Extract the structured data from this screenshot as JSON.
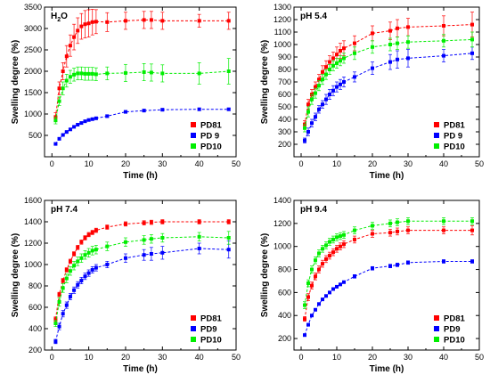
{
  "chart_data": [
    {
      "type": "scatter",
      "panel": "top-left",
      "title": "H2O",
      "title_main": "H",
      "title_sub": "2",
      "title_end": "O",
      "xlabel": "Time (h)",
      "ylabel": "Swelling degree (%)",
      "xlim": [
        -2,
        50
      ],
      "ylim": [
        0,
        3500
      ],
      "xticks": [
        0,
        10,
        20,
        30,
        40,
        50
      ],
      "yticks": [
        500,
        1000,
        1500,
        2000,
        2500,
        3000,
        3500
      ],
      "legend_position": "bottom-right",
      "series": [
        {
          "name": "PD81",
          "color": "#ff0000",
          "x": [
            1,
            2,
            3,
            4,
            5,
            6,
            7,
            8,
            9,
            10,
            11,
            12,
            15,
            20,
            25,
            27,
            30,
            40,
            48
          ],
          "y": [
            930,
            1600,
            2000,
            2350,
            2600,
            2800,
            2950,
            3050,
            3100,
            3120,
            3150,
            3160,
            3150,
            3180,
            3200,
            3200,
            3180,
            3180,
            3180
          ],
          "err": [
            100,
            150,
            200,
            250,
            250,
            300,
            300,
            300,
            320,
            320,
            300,
            280,
            220,
            200,
            200,
            200,
            200,
            150,
            200
          ]
        },
        {
          "name": "PD 9",
          "color": "#0000ff",
          "x": [
            1,
            2,
            3,
            4,
            5,
            6,
            7,
            8,
            9,
            10,
            11,
            12,
            15,
            20,
            25,
            30,
            40,
            48
          ],
          "y": [
            300,
            420,
            510,
            580,
            640,
            700,
            750,
            790,
            830,
            860,
            880,
            900,
            950,
            1050,
            1080,
            1100,
            1110,
            1110
          ],
          "err": [
            20,
            20,
            20,
            20,
            20,
            20,
            25,
            25,
            25,
            25,
            25,
            25,
            30,
            30,
            30,
            30,
            30,
            30
          ]
        },
        {
          "name": "PD10",
          "color": "#00ee00",
          "x": [
            1,
            2,
            3,
            4,
            5,
            6,
            7,
            8,
            9,
            10,
            11,
            12,
            15,
            20,
            25,
            27,
            30,
            40,
            48
          ],
          "y": [
            850,
            1300,
            1600,
            1780,
            1870,
            1920,
            1950,
            1950,
            1940,
            1940,
            1940,
            1930,
            1950,
            1960,
            1980,
            1970,
            1950,
            1950,
            2000
          ],
          "err": [
            80,
            100,
            150,
            150,
            150,
            150,
            150,
            150,
            150,
            150,
            150,
            150,
            150,
            200,
            200,
            200,
            200,
            250,
            300
          ]
        }
      ]
    },
    {
      "type": "scatter",
      "panel": "top-right",
      "title": "pH 5.4",
      "xlabel": "Time (h)",
      "ylabel": "Swelling degree (%)",
      "xlim": [
        -2,
        50
      ],
      "ylim": [
        100,
        1300
      ],
      "xticks": [
        0,
        10,
        20,
        30,
        40,
        50
      ],
      "yticks": [
        200,
        300,
        400,
        500,
        600,
        700,
        800,
        900,
        1000,
        1100,
        1200,
        1300
      ],
      "legend_position": "bottom-right",
      "series": [
        {
          "name": "PD81",
          "color": "#ff0000",
          "x": [
            1,
            2,
            3,
            4,
            5,
            6,
            7,
            8,
            9,
            10,
            11,
            12,
            15,
            20,
            25,
            27,
            30,
            40,
            48
          ],
          "y": [
            360,
            520,
            600,
            660,
            720,
            780,
            820,
            860,
            890,
            920,
            950,
            970,
            1010,
            1090,
            1110,
            1130,
            1140,
            1150,
            1160
          ],
          "err": [
            30,
            40,
            40,
            40,
            40,
            50,
            50,
            50,
            50,
            60,
            60,
            60,
            60,
            60,
            70,
            70,
            70,
            80,
            100
          ]
        },
        {
          "name": "PD 9",
          "color": "#0000ff",
          "x": [
            1,
            2,
            3,
            4,
            5,
            6,
            7,
            8,
            9,
            10,
            11,
            12,
            15,
            20,
            25,
            27,
            30,
            40,
            48
          ],
          "y": [
            230,
            300,
            370,
            420,
            480,
            520,
            560,
            600,
            630,
            660,
            680,
            700,
            740,
            810,
            860,
            880,
            890,
            910,
            930
          ],
          "err": [
            20,
            30,
            30,
            30,
            30,
            30,
            40,
            40,
            40,
            40,
            40,
            40,
            40,
            50,
            60,
            70,
            70,
            50,
            50
          ]
        },
        {
          "name": "PD10",
          "color": "#00ee00",
          "x": [
            1,
            2,
            3,
            4,
            5,
            6,
            7,
            8,
            9,
            10,
            11,
            12,
            15,
            20,
            25,
            27,
            30,
            40,
            48
          ],
          "y": [
            330,
            460,
            560,
            610,
            670,
            720,
            760,
            800,
            830,
            850,
            870,
            890,
            930,
            980,
            1000,
            1010,
            1020,
            1030,
            1040
          ],
          "err": [
            30,
            40,
            40,
            40,
            40,
            40,
            40,
            40,
            40,
            40,
            40,
            40,
            50,
            50,
            50,
            50,
            50,
            50,
            60
          ]
        }
      ]
    },
    {
      "type": "scatter",
      "panel": "bottom-left",
      "title": "pH 7.4",
      "xlabel": "Time (h)",
      "ylabel": "Swelling degree (%)",
      "xlim": [
        -2,
        50
      ],
      "ylim": [
        200,
        1600
      ],
      "xticks": [
        0,
        10,
        20,
        30,
        40,
        50
      ],
      "yticks": [
        200,
        400,
        600,
        800,
        1000,
        1200,
        1400,
        1600
      ],
      "legend_position": "bottom-right",
      "series": [
        {
          "name": "PD81",
          "color": "#ff0000",
          "x": [
            1,
            2,
            3,
            4,
            5,
            6,
            7,
            8,
            9,
            10,
            11,
            12,
            15,
            20,
            25,
            27,
            30,
            40,
            48
          ],
          "y": [
            490,
            720,
            850,
            950,
            1030,
            1100,
            1160,
            1210,
            1250,
            1280,
            1300,
            1320,
            1350,
            1380,
            1390,
            1395,
            1400,
            1400,
            1400
          ],
          "err": [
            20,
            20,
            20,
            20,
            20,
            20,
            20,
            20,
            20,
            20,
            20,
            20,
            20,
            20,
            20,
            20,
            20,
            20,
            20
          ]
        },
        {
          "name": "PD9",
          "color": "#0000ff",
          "x": [
            1,
            2,
            3,
            4,
            5,
            6,
            7,
            8,
            9,
            10,
            11,
            12,
            15,
            20,
            25,
            27,
            30,
            40,
            48
          ],
          "y": [
            280,
            420,
            540,
            620,
            700,
            760,
            810,
            850,
            890,
            920,
            950,
            970,
            1000,
            1060,
            1090,
            1100,
            1110,
            1150,
            1140
          ],
          "err": [
            20,
            30,
            30,
            30,
            30,
            30,
            30,
            30,
            30,
            30,
            30,
            30,
            30,
            40,
            50,
            60,
            60,
            50,
            80
          ]
        },
        {
          "name": "PD10",
          "color": "#00ee00",
          "x": [
            1,
            2,
            3,
            4,
            5,
            6,
            7,
            8,
            9,
            10,
            11,
            12,
            15,
            20,
            25,
            27,
            30,
            40,
            48
          ],
          "y": [
            450,
            650,
            780,
            870,
            940,
            990,
            1030,
            1060,
            1090,
            1110,
            1130,
            1140,
            1170,
            1210,
            1230,
            1240,
            1250,
            1260,
            1250
          ],
          "err": [
            30,
            40,
            40,
            40,
            40,
            40,
            40,
            40,
            40,
            40,
            40,
            40,
            40,
            40,
            40,
            40,
            40,
            40,
            60
          ]
        }
      ]
    },
    {
      "type": "scatter",
      "panel": "bottom-right",
      "title": "pH 9.4",
      "xlabel": "Time (h)",
      "ylabel": "Swelling degree (%)",
      "xlim": [
        -2,
        50
      ],
      "ylim": [
        100,
        1400
      ],
      "xticks": [
        0,
        10,
        20,
        30,
        40,
        50
      ],
      "yticks": [
        200,
        400,
        600,
        800,
        1000,
        1200,
        1400
      ],
      "legend_position": "bottom-right",
      "series": [
        {
          "name": "PD81",
          "color": "#ff0000",
          "x": [
            1,
            2,
            3,
            4,
            5,
            6,
            7,
            8,
            9,
            10,
            11,
            12,
            15,
            20,
            25,
            27,
            30,
            40,
            48
          ],
          "y": [
            370,
            560,
            660,
            740,
            800,
            850,
            890,
            920,
            950,
            980,
            1000,
            1020,
            1060,
            1110,
            1120,
            1130,
            1140,
            1140,
            1140
          ],
          "err": [
            20,
            30,
            30,
            30,
            30,
            30,
            30,
            30,
            30,
            30,
            30,
            30,
            30,
            30,
            30,
            30,
            30,
            30,
            40
          ]
        },
        {
          "name": "PD9",
          "color": "#0000ff",
          "x": [
            1,
            2,
            3,
            4,
            5,
            6,
            7,
            8,
            9,
            10,
            11,
            12,
            15,
            20,
            25,
            27,
            30,
            40,
            48
          ],
          "y": [
            230,
            320,
            400,
            450,
            500,
            540,
            570,
            600,
            630,
            650,
            670,
            690,
            740,
            810,
            830,
            840,
            860,
            870,
            870
          ],
          "err": [
            10,
            10,
            10,
            10,
            10,
            10,
            10,
            10,
            10,
            10,
            10,
            10,
            15,
            15,
            15,
            15,
            15,
            15,
            15
          ]
        },
        {
          "name": "PD10",
          "color": "#00ee00",
          "x": [
            1,
            2,
            3,
            4,
            5,
            6,
            7,
            8,
            9,
            10,
            11,
            12,
            15,
            20,
            25,
            27,
            30,
            40,
            48
          ],
          "y": [
            490,
            680,
            800,
            880,
            940,
            980,
            1010,
            1040,
            1060,
            1080,
            1090,
            1100,
            1140,
            1180,
            1200,
            1210,
            1220,
            1220,
            1220
          ],
          "err": [
            30,
            30,
            30,
            30,
            30,
            30,
            30,
            30,
            30,
            30,
            30,
            30,
            30,
            30,
            30,
            30,
            30,
            30,
            30
          ]
        }
      ]
    }
  ]
}
